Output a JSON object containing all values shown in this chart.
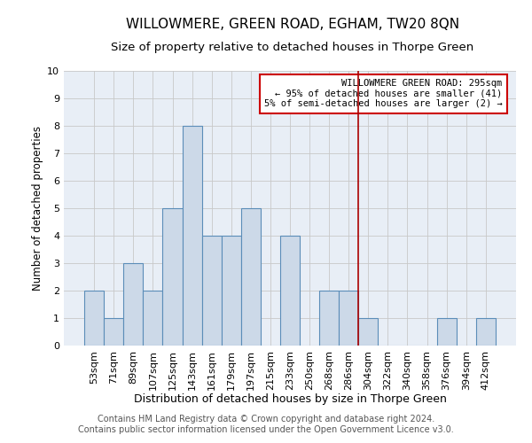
{
  "title": "WILLOWMERE, GREEN ROAD, EGHAM, TW20 8QN",
  "subtitle": "Size of property relative to detached houses in Thorpe Green",
  "xlabel": "Distribution of detached houses by size in Thorpe Green",
  "ylabel": "Number of detached properties",
  "bar_labels": [
    "53sqm",
    "71sqm",
    "89sqm",
    "107sqm",
    "125sqm",
    "143sqm",
    "161sqm",
    "179sqm",
    "197sqm",
    "215sqm",
    "233sqm",
    "250sqm",
    "268sqm",
    "286sqm",
    "304sqm",
    "322sqm",
    "340sqm",
    "358sqm",
    "376sqm",
    "394sqm",
    "412sqm"
  ],
  "bar_values": [
    2,
    1,
    3,
    2,
    5,
    8,
    4,
    4,
    5,
    0,
    4,
    0,
    2,
    2,
    1,
    0,
    0,
    0,
    1,
    0,
    1
  ],
  "bar_color": "#ccd9e8",
  "bar_edge_color": "#5b8db8",
  "grid_color": "#c8c8c8",
  "background_color": "#e8eef6",
  "red_line_x": 13.5,
  "red_line_color": "#aa0000",
  "annotation_text": "WILLOWMERE GREEN ROAD: 295sqm\n← 95% of detached houses are smaller (41)\n5% of semi-detached houses are larger (2) →",
  "annotation_box_facecolor": "#ffffff",
  "annotation_box_edgecolor": "#cc0000",
  "ylim": [
    0,
    10
  ],
  "yticks": [
    0,
    1,
    2,
    3,
    4,
    5,
    6,
    7,
    8,
    9,
    10
  ],
  "footer_text": "Contains HM Land Registry data © Crown copyright and database right 2024.\nContains public sector information licensed under the Open Government Licence v3.0.",
  "title_fontsize": 11,
  "subtitle_fontsize": 9.5,
  "xlabel_fontsize": 9,
  "ylabel_fontsize": 8.5,
  "tick_fontsize": 8,
  "footer_fontsize": 7,
  "annot_fontsize": 7.5
}
